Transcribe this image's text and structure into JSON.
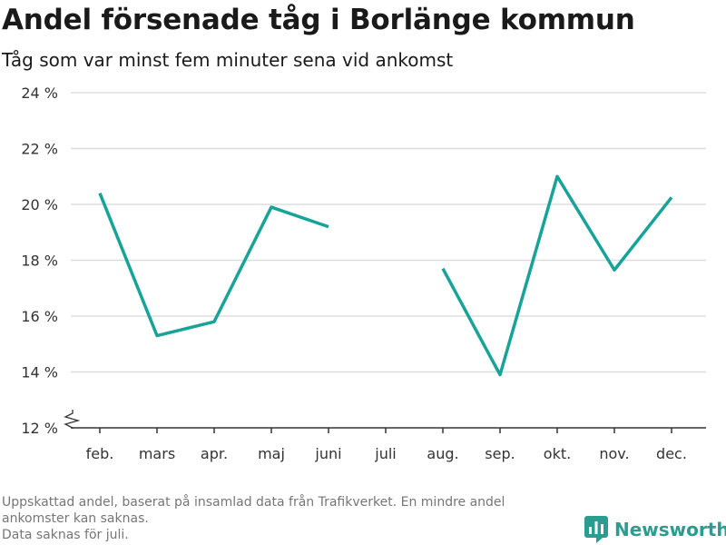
{
  "title": "Andel försenade tåg i Borlänge kommun",
  "subtitle": "Tåg som var minst fem minuter sena vid ankomst",
  "footnote_lines": [
    "Uppskattad andel, baserat på insamlad data från Trafikverket. En mindre andel",
    "ankomster kan saknas.",
    "Data saknas för juli."
  ],
  "brand": "Newsworthy",
  "colors": {
    "line": "#17a398",
    "grid": "#dddddd",
    "axis": "#333333",
    "footnote": "#767676",
    "brand": "#2a9d8f"
  },
  "chart_data": {
    "type": "line",
    "title": "Andel försenade tåg i Borlänge kommun",
    "subtitle": "Tåg som var minst fem minuter sena vid ankomst",
    "categories": [
      "feb.",
      "mars",
      "apr.",
      "maj",
      "juni",
      "juli",
      "aug.",
      "sep.",
      "okt.",
      "nov.",
      "dec."
    ],
    "series": [
      {
        "values": [
          20.4,
          15.3,
          15.8,
          19.9,
          19.2,
          null,
          17.7,
          13.9,
          21.0,
          17.65,
          20.25
        ]
      }
    ],
    "yticks": [
      12,
      14,
      16,
      18,
      20,
      22,
      24
    ],
    "ytick_suffix": " %",
    "ylim": [
      12,
      24
    ],
    "grid": true,
    "broken_axis": true
  }
}
